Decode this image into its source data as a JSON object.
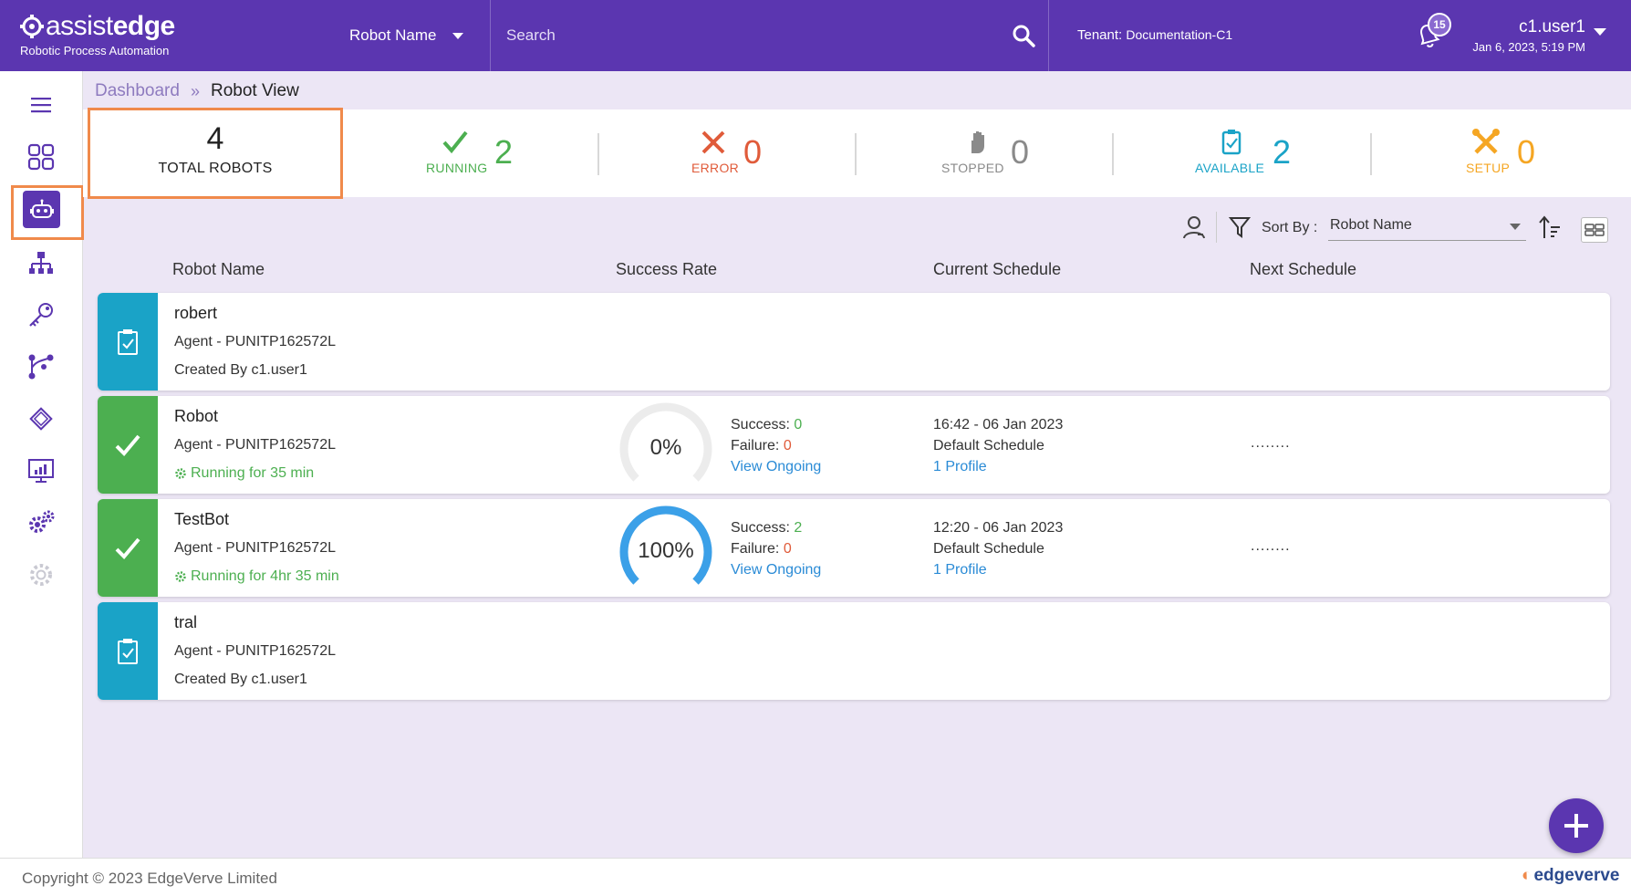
{
  "header": {
    "logo_text_thin": "assist",
    "logo_text_bold": "edge",
    "logo_subtitle": "Robotic Process Automation",
    "robot_select_label": "Robot Name",
    "search_placeholder": "Search",
    "tenant_label": "Tenant:",
    "tenant_value": "Documentation-C1",
    "notification_count": "15",
    "user_name": "c1.user1",
    "user_datetime": "Jan 6, 2023, 5:19 PM"
  },
  "breadcrumb": {
    "parent": "Dashboard",
    "separator": "»",
    "current": "Robot View"
  },
  "summary": {
    "total_count": "4",
    "total_label": "TOTAL ROBOTS",
    "running_label": "RUNNING",
    "running_count": "2",
    "running_color": "#4caf50",
    "error_label": "ERROR",
    "error_count": "0",
    "error_color": "#e05b3a",
    "stopped_label": "STOPPED",
    "stopped_count": "0",
    "stopped_color": "#8a8a8a",
    "available_label": "AVAILABLE",
    "available_count": "2",
    "available_color": "#1aa3c7",
    "setup_label": "SETUP",
    "setup_count": "0",
    "setup_color": "#f5a623"
  },
  "toolbar": {
    "sort_label": "Sort By :",
    "sort_value": "Robot Name"
  },
  "table": {
    "headers": {
      "robot_name": "Robot Name",
      "success_rate": "Success Rate",
      "current_schedule": "Current Schedule",
      "next_schedule": "Next Schedule"
    },
    "rows": [
      {
        "name": "robert",
        "agent": "Agent - PUNITP162572L",
        "meta": "Created By c1.user1",
        "status": "available"
      },
      {
        "name": "Robot",
        "agent": "Agent - PUNITP162572L",
        "meta": "Running for 35 min",
        "status": "running",
        "success_rate_text": "0%",
        "success_rate": 0,
        "success_label": "Success:",
        "success_value": "0",
        "failure_label": "Failure:",
        "failure_value": "0",
        "view_link": "View Ongoing",
        "schedule_time": "16:42 - 06 Jan 2023",
        "schedule_name": "Default Schedule",
        "schedule_profile": "1 Profile",
        "next_schedule": "........"
      },
      {
        "name": "TestBot",
        "agent": "Agent - PUNITP162572L",
        "meta": "Running for 4hr 35 min",
        "status": "running",
        "success_rate_text": "100%",
        "success_rate": 100,
        "success_label": "Success:",
        "success_value": "2",
        "failure_label": "Failure:",
        "failure_value": "0",
        "view_link": "View Ongoing",
        "schedule_time": "12:20 - 06 Jan 2023",
        "schedule_name": "Default Schedule",
        "schedule_profile": "1 Profile",
        "next_schedule": "........"
      },
      {
        "name": "tral",
        "agent": "Agent - PUNITP162572L",
        "meta": "Created By c1.user1",
        "status": "available"
      }
    ]
  },
  "footer": {
    "copyright": "Copyright © 2023 EdgeVerve Limited",
    "brand": "edgeverve"
  },
  "colors": {
    "primary": "#5b36b0",
    "highlight": "#f08a4b",
    "running": "#4caf50",
    "available": "#1aa3c7",
    "gauge_fill": "#3ba0e8",
    "gauge_track": "#ececec"
  },
  "icons": {
    "sidebar": [
      "menu-icon",
      "dashboard-grid-icon",
      "robot-icon",
      "hierarchy-icon",
      "key-icon",
      "workflow-icon",
      "chip-icon",
      "monitor-chart-icon",
      "gears-icon",
      "gear-disabled-icon"
    ]
  }
}
